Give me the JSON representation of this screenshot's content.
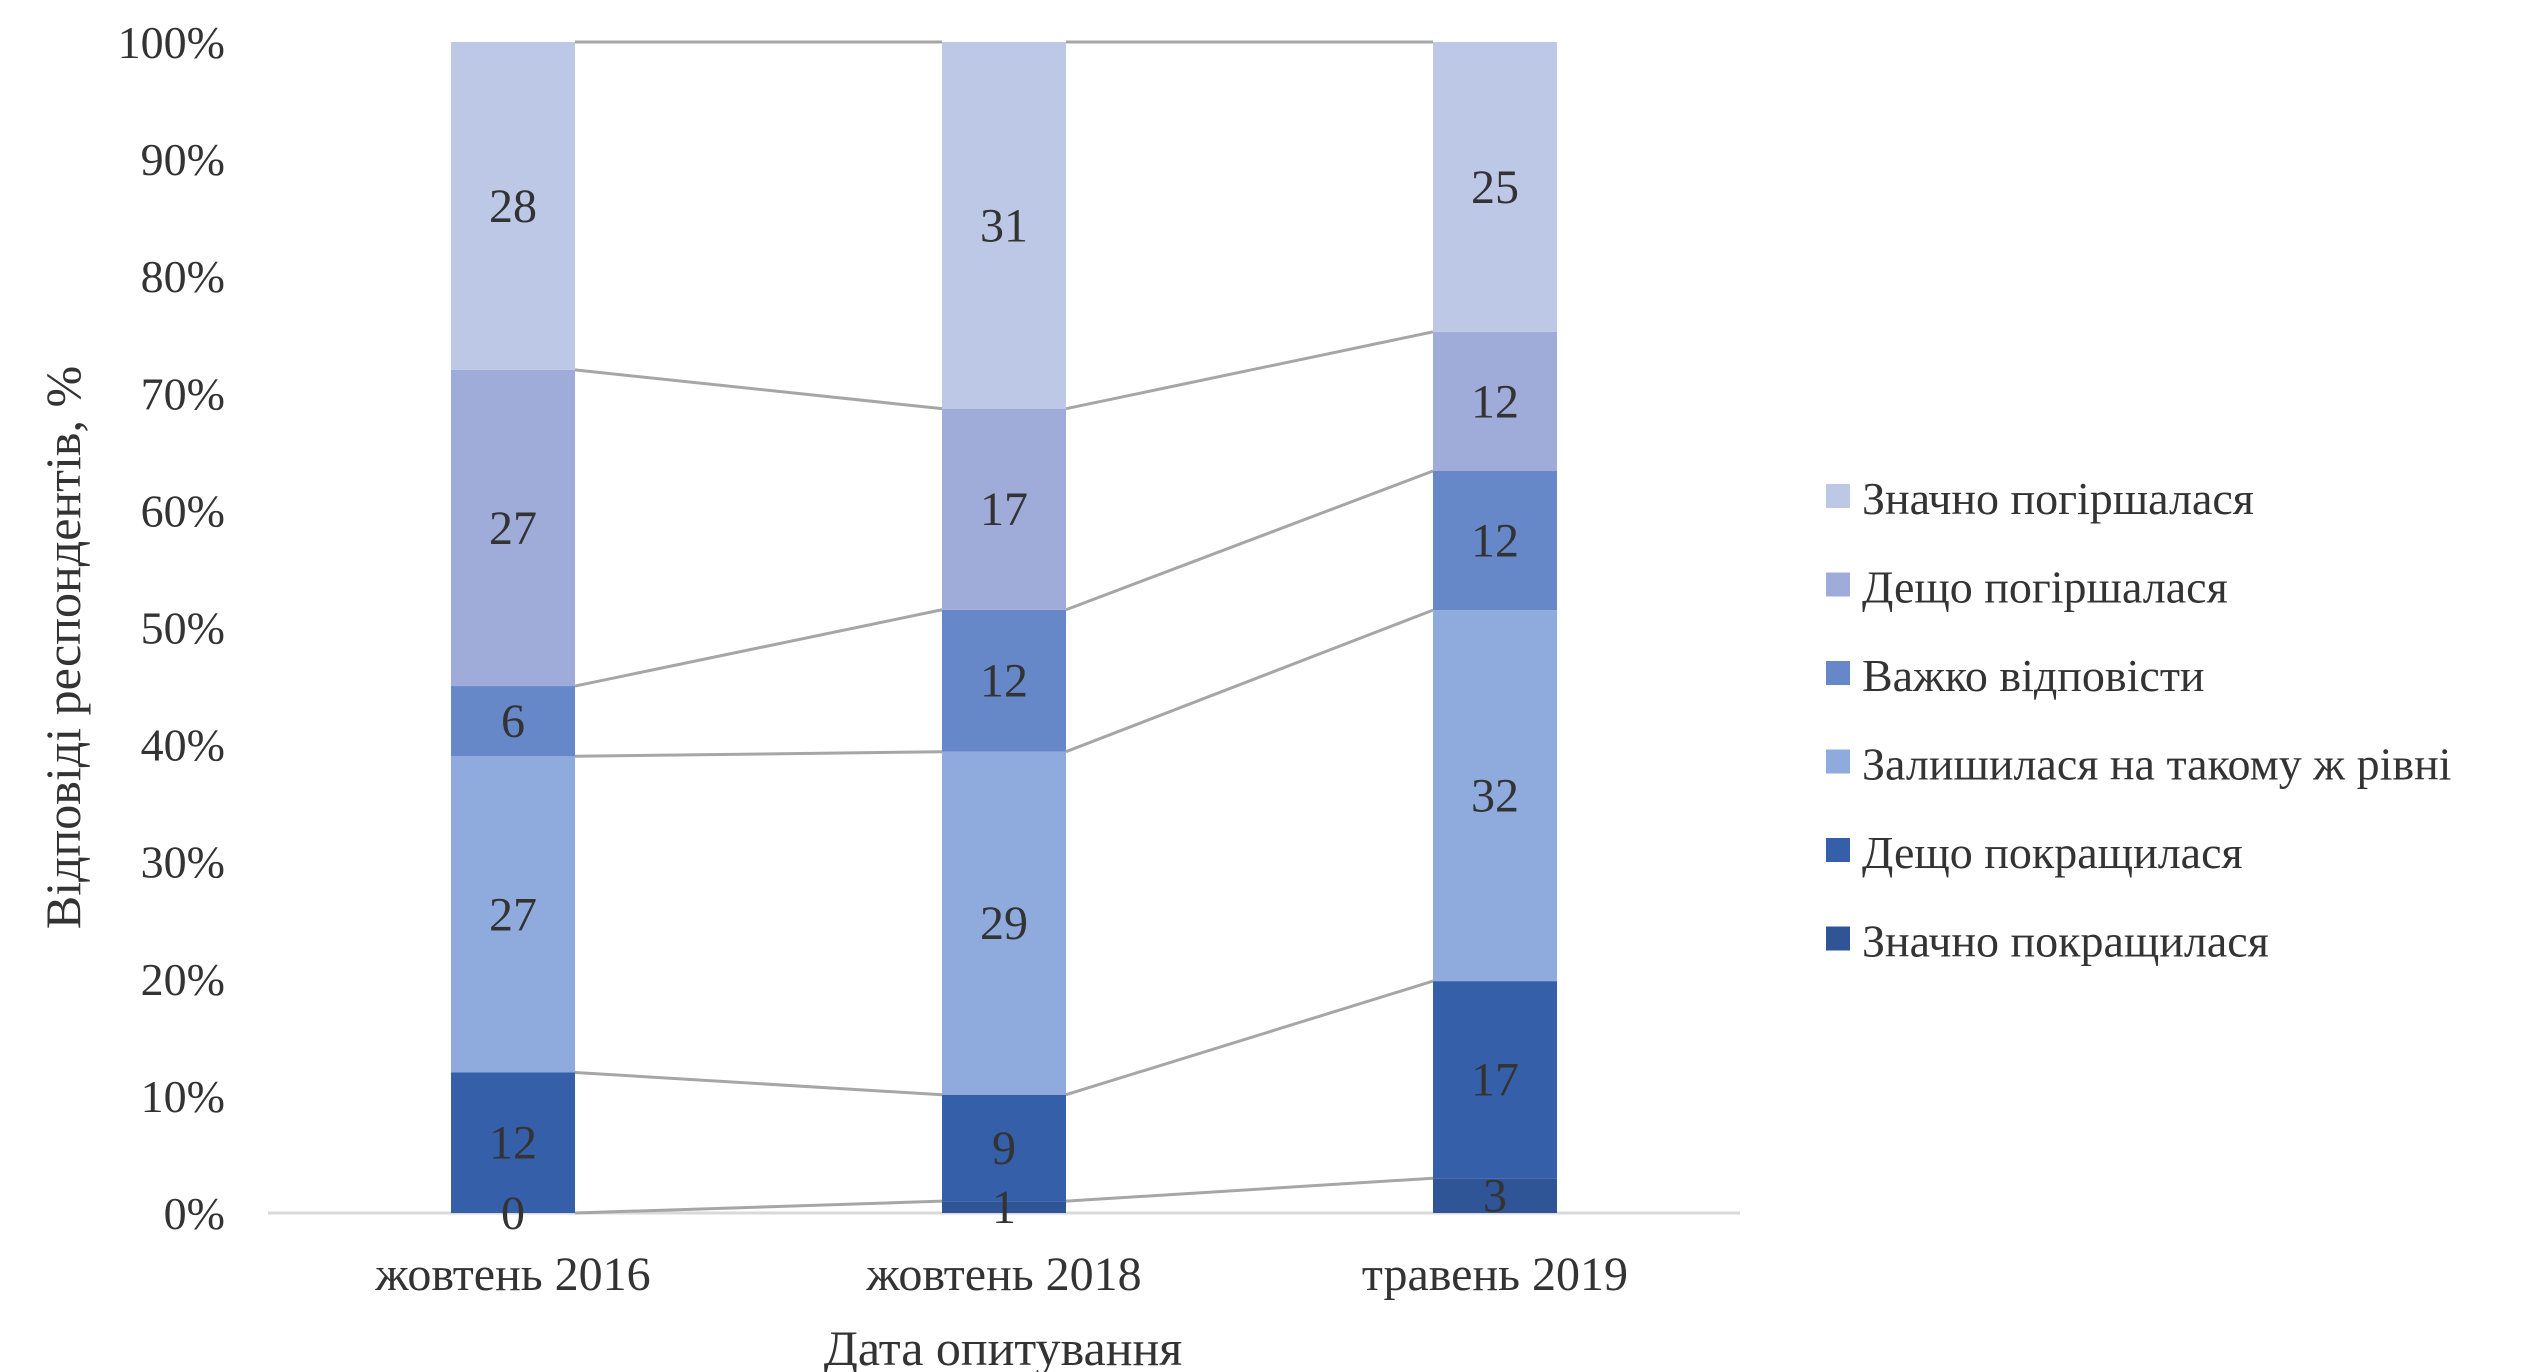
{
  "chart_data": {
    "type": "bar",
    "stacked": "percent",
    "title": "",
    "xlabel": "Дата опитування",
    "ylabel": "Відповіді респондентів, %",
    "ylim": [
      0,
      100
    ],
    "yticks": [
      "0%",
      "10%",
      "20%",
      "30%",
      "40%",
      "50%",
      "60%",
      "70%",
      "80%",
      "90%",
      "100%"
    ],
    "categories": [
      "жовтень 2016",
      "жовтень 2018",
      "травень 2019"
    ],
    "series": [
      {
        "name": "Значно покращилася",
        "values": [
          0,
          1,
          3
        ],
        "color": "#2f5597"
      },
      {
        "name": "Дещо покращилася",
        "values": [
          12,
          9,
          17
        ],
        "color": "#355fa8"
      },
      {
        "name": "Залишилася на такому ж рівні",
        "values": [
          27,
          29,
          32
        ],
        "color": "#8faadc"
      },
      {
        "name": "Важко відповісти",
        "values": [
          6,
          12,
          12
        ],
        "color": "#6688c8"
      },
      {
        "name": "Дещо погіршалася",
        "values": [
          27,
          17,
          12
        ],
        "color": "#9fabd8"
      },
      {
        "name": "Значно погіршалася",
        "values": [
          28,
          31,
          25
        ],
        "color": "#bcc8e6"
      }
    ],
    "series_lines": true,
    "grid": false,
    "legend_position": "right"
  }
}
